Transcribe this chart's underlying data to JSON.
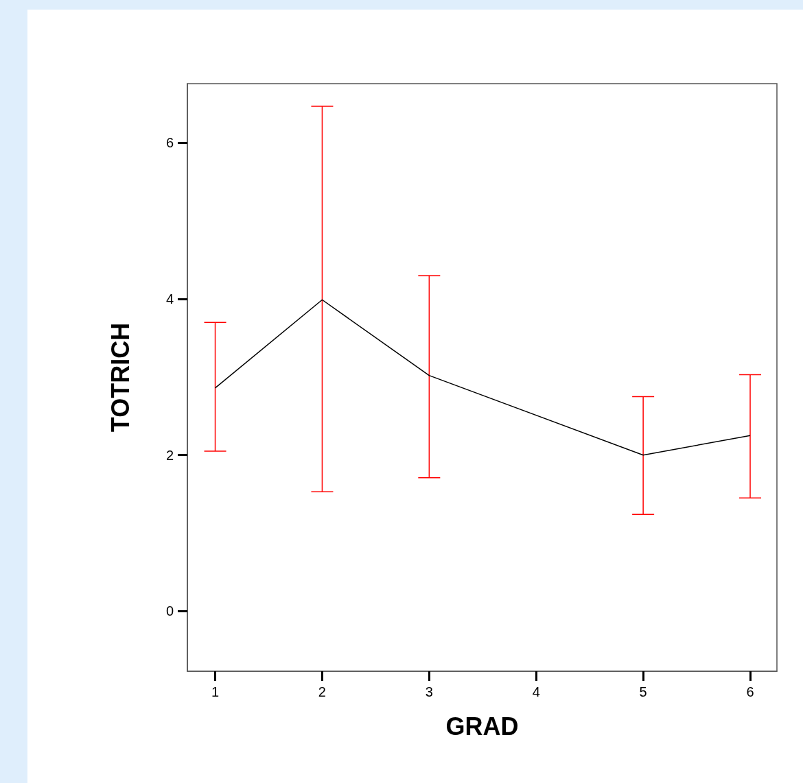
{
  "chart_data": {
    "type": "line",
    "xlabel": "GRAD",
    "ylabel": "TOTRICH",
    "x": [
      1,
      2,
      3,
      5,
      6
    ],
    "series": [
      {
        "color": "#000000",
        "values": [
          2.86,
          3.99,
          3.02,
          2.0,
          2.25
        ],
        "errors": [
          [
            2.05,
            3.7
          ],
          [
            1.53,
            6.47
          ],
          [
            1.71,
            4.3
          ],
          [
            1.24,
            2.75
          ],
          [
            1.45,
            3.03
          ]
        ]
      }
    ],
    "xlim": [
      0.74,
      6.25
    ],
    "xticks": [
      1,
      2,
      3,
      4,
      5,
      6
    ],
    "ylim": [
      -0.77,
      6.76
    ],
    "yticks": [
      0,
      2,
      4,
      6
    ],
    "grid": false,
    "marker": "none",
    "line_style": "solid"
  }
}
